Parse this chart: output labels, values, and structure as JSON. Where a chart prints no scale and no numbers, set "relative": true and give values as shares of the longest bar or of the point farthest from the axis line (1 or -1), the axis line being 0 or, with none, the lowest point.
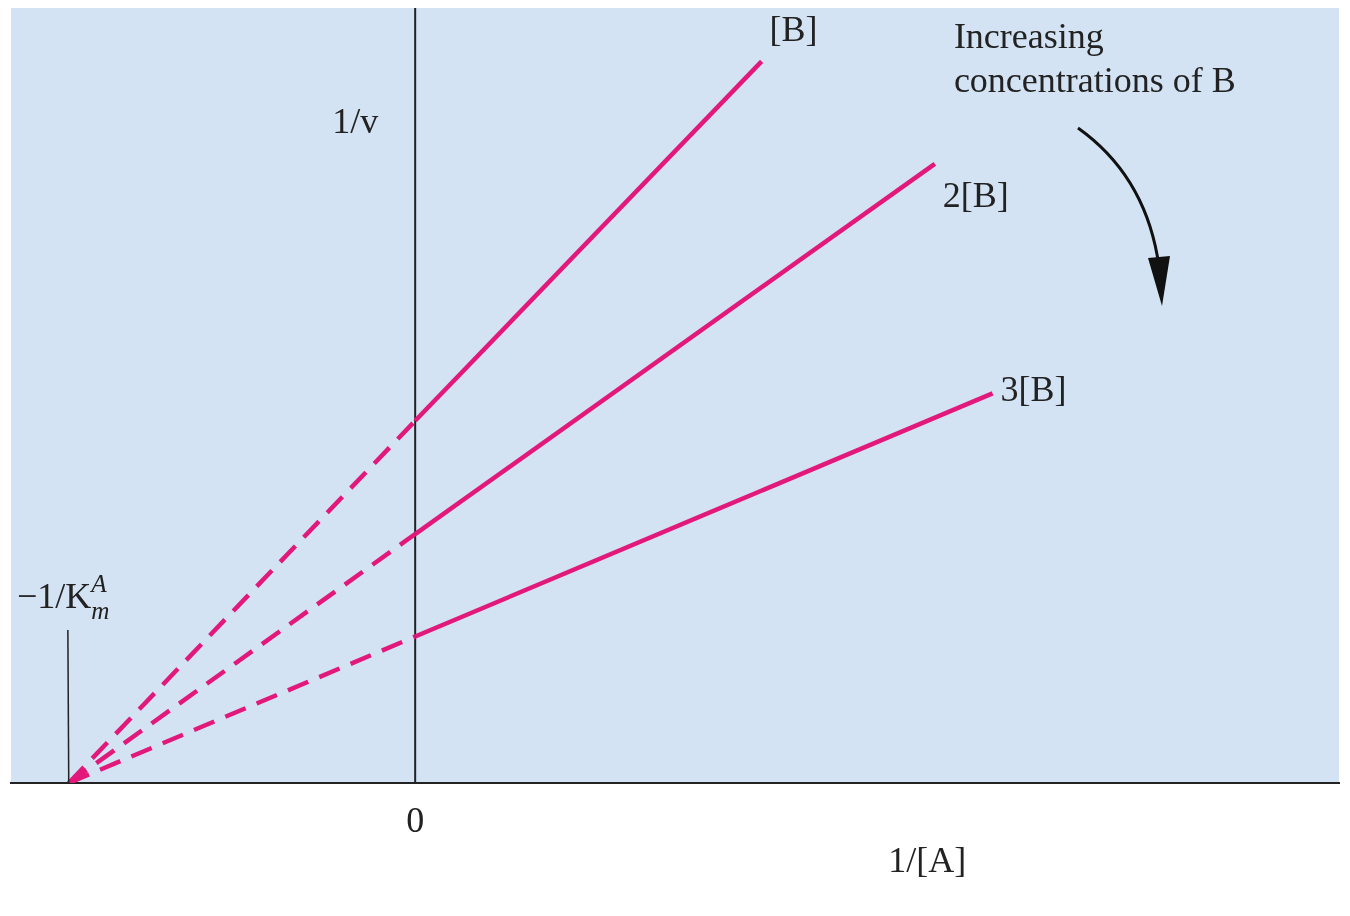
{
  "chart_data": {
    "type": "line",
    "relative": true,
    "xlabel": "1/[A]",
    "ylabel": "1/v",
    "categories": [
      null,
      null,
      null,
      null,
      null,
      null,
      null,
      null,
      null,
      null,
      null,
      null,
      null,
      null,
      null,
      null,
      null,
      null,
      null,
      null,
      null,
      null,
      null,
      null
    ],
    "series": [
      {
        "name": "[B]",
        "color": "#e2187a",
        "line_style": "solid",
        "values": [
          null,
          null,
          null,
          null,
          null,
          null,
          null,
          0.502,
          null,
          null,
          null,
          null,
          null,
          1.0,
          null,
          null,
          null,
          null,
          null,
          null,
          null,
          null,
          null,
          null
        ]
      },
      {
        "name": "2[B]",
        "color": "#e2187a",
        "line_style": "solid",
        "values": [
          null,
          null,
          null,
          null,
          null,
          null,
          null,
          0.345,
          null,
          null,
          null,
          null,
          null,
          null,
          null,
          null,
          0.858,
          null,
          null,
          null,
          null,
          null,
          null,
          null
        ]
      },
      {
        "name": "3[B]",
        "color": "#e2187a",
        "line_style": "solid",
        "values": [
          null,
          null,
          null,
          null,
          null,
          null,
          null,
          0.203,
          null,
          null,
          null,
          null,
          null,
          null,
          null,
          null,
          null,
          0.54,
          null,
          null,
          null,
          null,
          null,
          null
        ]
      },
      {
        "color": "#e2187a",
        "line_style": "dashed",
        "values": [
          null,
          0,
          null,
          null,
          null,
          null,
          null,
          0.502,
          null,
          null,
          null,
          null,
          null,
          null,
          null,
          null,
          null,
          null,
          null,
          null,
          null,
          null,
          null,
          null
        ]
      },
      {
        "color": "#e2187a",
        "line_style": "dashed",
        "values": [
          null,
          0,
          null,
          null,
          null,
          null,
          null,
          0.345,
          null,
          null,
          null,
          null,
          null,
          null,
          null,
          null,
          null,
          null,
          null,
          null,
          null,
          null,
          null,
          null
        ]
      },
      {
        "color": "#e2187a",
        "line_style": "dashed",
        "values": [
          null,
          0,
          null,
          null,
          null,
          null,
          null,
          0.203,
          null,
          null,
          null,
          null,
          null,
          null,
          null,
          null,
          null,
          null,
          null,
          null,
          null,
          null,
          null,
          null
        ]
      }
    ],
    "annotations": [
      "Increasing concentrations of B",
      "−1/K$_{m}$$^{A}$",
      "0"
    ],
    "legend": false,
    "marker": "none"
  }
}
